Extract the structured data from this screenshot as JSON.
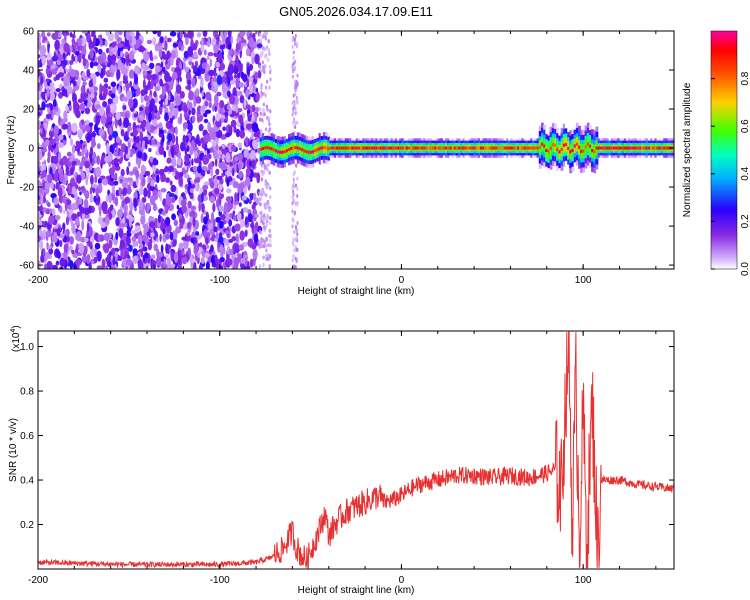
{
  "chart_data": [
    {
      "type": "heatmap",
      "title": "GN05.2026.034.17.09.E11",
      "xlabel": "Height of straight line (km)",
      "ylabel": "Frequency (Hz)",
      "xlim": [
        -200,
        150
      ],
      "ylim": [
        -62,
        60
      ],
      "xticks": [
        -200,
        -100,
        0,
        100
      ],
      "xtick_labels": [
        "-200",
        "-100",
        "0",
        "100"
      ],
      "yticks": [
        -60,
        -40,
        -20,
        0,
        20,
        40,
        60
      ],
      "ytick_labels": [
        "-60",
        "-40",
        "-20",
        "0",
        "20",
        "40",
        "60"
      ],
      "colorbar": {
        "label": "Normalized spectral amplitude",
        "range": [
          0,
          1
        ],
        "ticks": [
          0.0,
          0.2,
          0.4,
          0.6,
          0.8
        ],
        "tick_labels": [
          "0.0",
          "0.2",
          "0.4",
          "0.6",
          "0.8"
        ],
        "colormap": [
          "#ffffff",
          "#d8b8ff",
          "#8a2be2",
          "#2a00ff",
          "#00b0ff",
          "#00ffc0",
          "#40ff00",
          "#ffd000",
          "#ff5000",
          "#ff0000",
          "#ff00a0"
        ]
      },
      "features": {
        "broadband_noise_region_km": [
          -200,
          -78
        ],
        "noise_amplitude": 0.25,
        "sparse_stripe_km": [
          -60,
          -57
        ],
        "signal_band_center_hz": 0,
        "signal_band_km": [
          -78,
          150
        ],
        "signal_band_halfwidth_hz": 3,
        "peak_amplitude": 0.95
      }
    },
    {
      "type": "line",
      "xlabel": "Height of straight line (km)",
      "ylabel": "SNR (10 * v/v)",
      "y_scale_label": "(x10",
      "y_scale_exponent": "4",
      "y_scale_close": ")",
      "xlim": [
        -200,
        150
      ],
      "ylim": [
        0,
        1.07
      ],
      "xticks": [
        -200,
        -100,
        0,
        100
      ],
      "xtick_labels": [
        "-200",
        "-100",
        "0",
        "100"
      ],
      "yticks": [
        0.2,
        0.4,
        0.6,
        0.8,
        1.0
      ],
      "ytick_labels": [
        "0.2",
        "0.4",
        "0.6",
        "0.8",
        "1.0"
      ],
      "color": "#e83030",
      "series": [
        {
          "name": "SNR",
          "x": [
            -200,
            -150,
            -100,
            -80,
            -72,
            -65,
            -62,
            -60,
            -58,
            -55,
            -52,
            -50,
            -45,
            -42,
            -40,
            -35,
            -30,
            -25,
            -20,
            -15,
            -12,
            -10,
            -5,
            0,
            5,
            10,
            20,
            30,
            40,
            50,
            60,
            70,
            75,
            80,
            85,
            88,
            90,
            92,
            94,
            96,
            98,
            100,
            102,
            105,
            108,
            110,
            115,
            120,
            130,
            140,
            150
          ],
          "values": [
            0.03,
            0.02,
            0.02,
            0.03,
            0.05,
            0.09,
            0.14,
            0.17,
            0.1,
            0.06,
            0.04,
            0.08,
            0.18,
            0.25,
            0.15,
            0.22,
            0.26,
            0.28,
            0.3,
            0.32,
            0.33,
            0.3,
            0.31,
            0.33,
            0.36,
            0.38,
            0.4,
            0.42,
            0.42,
            0.41,
            0.42,
            0.41,
            0.42,
            0.43,
            0.45,
            0.35,
            0.7,
            1.06,
            0.2,
            0.85,
            0.15,
            0.7,
            0.1,
            0.75,
            0.08,
            0.4,
            0.4,
            0.4,
            0.38,
            0.37,
            0.36
          ]
        }
      ]
    }
  ]
}
